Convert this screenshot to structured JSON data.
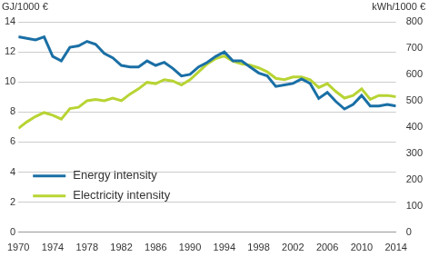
{
  "chart_data": {
    "type": "line",
    "ylabel": "GJ/1000 €",
    "y2label": "kWh/1000 €",
    "x": [
      1970,
      1971,
      1972,
      1973,
      1974,
      1975,
      1976,
      1977,
      1978,
      1979,
      1980,
      1981,
      1982,
      1983,
      1984,
      1985,
      1986,
      1987,
      1988,
      1989,
      1990,
      1991,
      1992,
      1993,
      1994,
      1995,
      1996,
      1997,
      1998,
      1999,
      2000,
      2001,
      2002,
      2003,
      2004,
      2005,
      2006,
      2007,
      2008,
      2009,
      2010,
      2011,
      2012,
      2013,
      2014
    ],
    "series": [
      {
        "name": "Energy intensity",
        "color": "#1a6fa5",
        "values": [
          13.0,
          12.9,
          12.8,
          13.0,
          11.7,
          11.4,
          12.3,
          12.4,
          12.7,
          12.5,
          11.9,
          11.6,
          11.1,
          11.0,
          11.0,
          11.4,
          11.1,
          11.3,
          10.9,
          10.4,
          10.5,
          11.0,
          11.3,
          11.7,
          12.0,
          11.4,
          11.4,
          11.0,
          10.6,
          10.4,
          9.7,
          9.8,
          9.9,
          10.2,
          9.9,
          8.9,
          9.3,
          8.7,
          8.2,
          8.5,
          9.1,
          8.4,
          8.4,
          8.5,
          8.4
        ]
      },
      {
        "name": "Electricity intensity",
        "color": "#b7d433",
        "axis": "y2",
        "values": [
          395,
          420,
          440,
          455,
          445,
          430,
          470,
          475,
          500,
          505,
          500,
          510,
          500,
          525,
          545,
          570,
          565,
          580,
          575,
          560,
          580,
          610,
          640,
          660,
          670,
          650,
          640,
          635,
          625,
          610,
          585,
          580,
          590,
          590,
          580,
          550,
          565,
          535,
          510,
          520,
          545,
          505,
          520,
          520,
          515
        ]
      }
    ],
    "xlim": [
      1970,
      2014
    ],
    "xticks": [
      1970,
      1974,
      1978,
      1982,
      1986,
      1990,
      1994,
      1998,
      2002,
      2006,
      2010,
      2014
    ],
    "ylim": [
      0,
      14
    ],
    "yticks": [
      0,
      2,
      4,
      6,
      8,
      10,
      12,
      14
    ],
    "y2lim": [
      0,
      800
    ],
    "y2ticks": [
      0,
      100,
      200,
      300,
      400,
      500,
      600,
      700,
      800
    ],
    "grid": true,
    "legend": "lower left"
  }
}
